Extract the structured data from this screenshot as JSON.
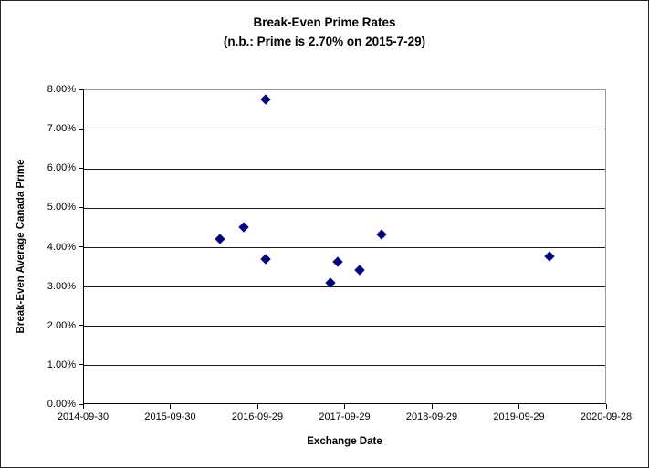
{
  "chart_data": {
    "type": "scatter",
    "title": "Break-Even Prime Rates",
    "subtitle": "(n.b.: Prime is 2.70% on 2015-7-29)",
    "xlabel": "Exchange Date",
    "ylabel": "Break-Even Average Canada Prime",
    "x_tick_labels": [
      "2014-09-30",
      "2015-09-30",
      "2016-09-29",
      "2017-09-29",
      "2018-09-29",
      "2019-09-29",
      "2020-09-28"
    ],
    "y_tick_labels": [
      "0.00%",
      "1.00%",
      "2.00%",
      "3.00%",
      "4.00%",
      "5.00%",
      "6.00%",
      "7.00%",
      "8.00%"
    ],
    "x_axis_years_span": [
      0,
      6
    ],
    "ylim_percent": [
      0,
      8
    ],
    "grid": "horizontal-only",
    "legend": "none",
    "marker": {
      "shape": "diamond",
      "color": "#000080"
    },
    "points": [
      {
        "x_years": 1.56,
        "date_approx": "2016-04-21",
        "y_percent": 4.22
      },
      {
        "x_years": 1.83,
        "date_approx": "2016-07-29",
        "y_percent": 4.53
      },
      {
        "x_years": 2.08,
        "date_approx": "2016-10-29",
        "y_percent": 7.77
      },
      {
        "x_years": 2.08,
        "date_approx": "2016-10-29",
        "y_percent": 3.7
      },
      {
        "x_years": 2.83,
        "date_approx": "2017-07-29",
        "y_percent": 3.1
      },
      {
        "x_years": 2.91,
        "date_approx": "2017-08-26",
        "y_percent": 3.64
      },
      {
        "x_years": 3.16,
        "date_approx": "2017-11-26",
        "y_percent": 3.43
      },
      {
        "x_years": 3.41,
        "date_approx": "2018-02-26",
        "y_percent": 4.33
      },
      {
        "x_years": 5.34,
        "date_approx": "2020-01-29",
        "y_percent": 3.78
      }
    ]
  },
  "colors": {
    "marker": "#000080",
    "gridline": "#1a1a1a",
    "axis": "#000000",
    "plot_border": "#999999",
    "text": "#000000",
    "background": "#ffffff"
  }
}
